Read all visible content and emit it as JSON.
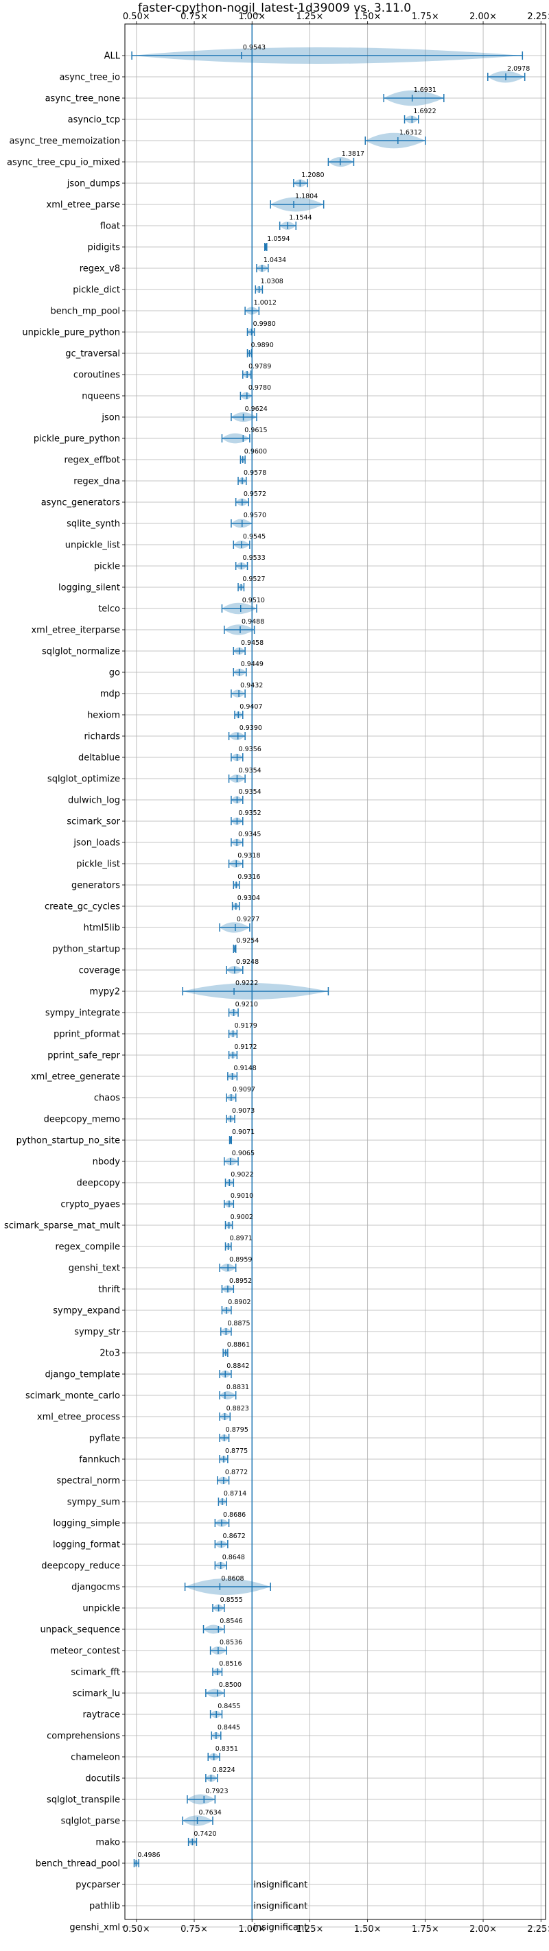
{
  "chart_data": {
    "type": "violin",
    "title": "faster-cpython-nogil_latest-1d39009 vs. 3.11.0",
    "xlabel": "",
    "ylabel": "",
    "xlim": [
      0.45,
      2.27
    ],
    "x_ticks": [
      "0.50×",
      "0.75×",
      "1.00×",
      "1.25×",
      "1.50×",
      "1.75×",
      "2.00×",
      "2.25×"
    ],
    "x_tick_values": [
      0.5,
      0.75,
      1.0,
      1.25,
      1.5,
      1.75,
      2.0,
      2.25
    ],
    "reference_line": 1.0,
    "grid": true,
    "accent_color": "#1f77b4",
    "insignificant_label": "insignificant",
    "benchmarks": [
      {
        "name": "ALL",
        "value": 0.9543,
        "label": "0.9543",
        "min": 0.48,
        "max": 2.17
      },
      {
        "name": "async_tree_io",
        "value": 2.0978,
        "label": "2.0978",
        "min": 2.02,
        "max": 2.18
      },
      {
        "name": "async_tree_none",
        "value": 1.6931,
        "label": "1.6931",
        "min": 1.57,
        "max": 1.83
      },
      {
        "name": "asyncio_tcp",
        "value": 1.6922,
        "label": "1.6922",
        "min": 1.66,
        "max": 1.72
      },
      {
        "name": "async_tree_memoization",
        "value": 1.6312,
        "label": "1.6312",
        "min": 1.49,
        "max": 1.75
      },
      {
        "name": "async_tree_cpu_io_mixed",
        "value": 1.3817,
        "label": "1.3817",
        "min": 1.33,
        "max": 1.44
      },
      {
        "name": "json_dumps",
        "value": 1.208,
        "label": "1.2080",
        "min": 1.18,
        "max": 1.24
      },
      {
        "name": "xml_etree_parse",
        "value": 1.1804,
        "label": "1.1804",
        "min": 1.08,
        "max": 1.31
      },
      {
        "name": "float",
        "value": 1.1544,
        "label": "1.1544",
        "min": 1.12,
        "max": 1.19
      },
      {
        "name": "pidigits",
        "value": 1.0594,
        "label": "1.0594",
        "min": 1.055,
        "max": 1.064
      },
      {
        "name": "regex_v8",
        "value": 1.0434,
        "label": "1.0434",
        "min": 1.02,
        "max": 1.07
      },
      {
        "name": "pickle_dict",
        "value": 1.0308,
        "label": "1.0308",
        "min": 1.015,
        "max": 1.045
      },
      {
        "name": "bench_mp_pool",
        "value": 1.0012,
        "label": "1.0012",
        "min": 0.97,
        "max": 1.03
      },
      {
        "name": "unpickle_pure_python",
        "value": 0.998,
        "label": "0.9980",
        "min": 0.98,
        "max": 1.01
      },
      {
        "name": "gc_traversal",
        "value": 0.989,
        "label": "0.9890",
        "min": 0.98,
        "max": 0.998
      },
      {
        "name": "coroutines",
        "value": 0.9789,
        "label": "0.9789",
        "min": 0.96,
        "max": 0.995
      },
      {
        "name": "nqueens",
        "value": 0.978,
        "label": "0.9780",
        "min": 0.95,
        "max": 1.0
      },
      {
        "name": "json",
        "value": 0.9624,
        "label": "0.9624",
        "min": 0.91,
        "max": 1.02
      },
      {
        "name": "pickle_pure_python",
        "value": 0.9615,
        "label": "0.9615",
        "min": 0.87,
        "max": 0.99
      },
      {
        "name": "regex_effbot",
        "value": 0.96,
        "label": "0.9600",
        "min": 0.95,
        "max": 0.97
      },
      {
        "name": "regex_dna",
        "value": 0.9578,
        "label": "0.9578",
        "min": 0.94,
        "max": 0.975
      },
      {
        "name": "async_generators",
        "value": 0.9572,
        "label": "0.9572",
        "min": 0.93,
        "max": 0.985
      },
      {
        "name": "sqlite_synth",
        "value": 0.957,
        "label": "0.9570",
        "min": 0.91,
        "max": 1.0
      },
      {
        "name": "unpickle_list",
        "value": 0.9545,
        "label": "0.9545",
        "min": 0.92,
        "max": 0.99
      },
      {
        "name": "pickle",
        "value": 0.9533,
        "label": "0.9533",
        "min": 0.93,
        "max": 0.98
      },
      {
        "name": "logging_silent",
        "value": 0.9527,
        "label": "0.9527",
        "min": 0.94,
        "max": 0.965
      },
      {
        "name": "telco",
        "value": 0.951,
        "label": "0.9510",
        "min": 0.87,
        "max": 1.02
      },
      {
        "name": "xml_etree_iterparse",
        "value": 0.9488,
        "label": "0.9488",
        "min": 0.88,
        "max": 1.01
      },
      {
        "name": "sqlglot_normalize",
        "value": 0.9458,
        "label": "0.9458",
        "min": 0.92,
        "max": 0.97
      },
      {
        "name": "go",
        "value": 0.9449,
        "label": "0.9449",
        "min": 0.92,
        "max": 0.975
      },
      {
        "name": "mdp",
        "value": 0.9432,
        "label": "0.9432",
        "min": 0.91,
        "max": 0.97
      },
      {
        "name": "hexiom",
        "value": 0.9407,
        "label": "0.9407",
        "min": 0.925,
        "max": 0.96
      },
      {
        "name": "richards",
        "value": 0.939,
        "label": "0.9390",
        "min": 0.9,
        "max": 0.97
      },
      {
        "name": "deltablue",
        "value": 0.9356,
        "label": "0.9356",
        "min": 0.91,
        "max": 0.96
      },
      {
        "name": "sqlglot_optimize",
        "value": 0.9354,
        "label": "0.9354",
        "min": 0.9,
        "max": 0.97
      },
      {
        "name": "dulwich_log",
        "value": 0.9354,
        "label": "0.9354",
        "min": 0.91,
        "max": 0.96
      },
      {
        "name": "scimark_sor",
        "value": 0.9352,
        "label": "0.9352",
        "min": 0.91,
        "max": 0.96
      },
      {
        "name": "json_loads",
        "value": 0.9345,
        "label": "0.9345",
        "min": 0.91,
        "max": 0.96
      },
      {
        "name": "pickle_list",
        "value": 0.9318,
        "label": "0.9318",
        "min": 0.9,
        "max": 0.96
      },
      {
        "name": "generators",
        "value": 0.9316,
        "label": "0.9316",
        "min": 0.92,
        "max": 0.945
      },
      {
        "name": "create_gc_cycles",
        "value": 0.9304,
        "label": "0.9304",
        "min": 0.915,
        "max": 0.945
      },
      {
        "name": "html5lib",
        "value": 0.9277,
        "label": "0.9277",
        "min": 0.86,
        "max": 0.99
      },
      {
        "name": "python_startup",
        "value": 0.9254,
        "label": "0.9254",
        "min": 0.92,
        "max": 0.93
      },
      {
        "name": "coverage",
        "value": 0.9248,
        "label": "0.9248",
        "min": 0.89,
        "max": 0.96
      },
      {
        "name": "mypy2",
        "value": 0.9222,
        "label": "0.9222",
        "min": 0.7,
        "max": 1.33
      },
      {
        "name": "sympy_integrate",
        "value": 0.921,
        "label": "0.9210",
        "min": 0.9,
        "max": 0.94
      },
      {
        "name": "pprint_pformat",
        "value": 0.9179,
        "label": "0.9179",
        "min": 0.9,
        "max": 0.935
      },
      {
        "name": "pprint_safe_repr",
        "value": 0.9172,
        "label": "0.9172",
        "min": 0.9,
        "max": 0.935
      },
      {
        "name": "xml_etree_generate",
        "value": 0.9148,
        "label": "0.9148",
        "min": 0.895,
        "max": 0.935
      },
      {
        "name": "chaos",
        "value": 0.9097,
        "label": "0.9097",
        "min": 0.89,
        "max": 0.93
      },
      {
        "name": "deepcopy_memo",
        "value": 0.9073,
        "label": "0.9073",
        "min": 0.89,
        "max": 0.925
      },
      {
        "name": "python_startup_no_site",
        "value": 0.9071,
        "label": "0.9071",
        "min": 0.903,
        "max": 0.911
      },
      {
        "name": "nbody",
        "value": 0.9065,
        "label": "0.9065",
        "min": 0.88,
        "max": 0.94
      },
      {
        "name": "deepcopy",
        "value": 0.9022,
        "label": "0.9022",
        "min": 0.885,
        "max": 0.92
      },
      {
        "name": "crypto_pyaes",
        "value": 0.901,
        "label": "0.9010",
        "min": 0.88,
        "max": 0.92
      },
      {
        "name": "scimark_sparse_mat_mult",
        "value": 0.9002,
        "label": "0.9002",
        "min": 0.885,
        "max": 0.915
      },
      {
        "name": "regex_compile",
        "value": 0.8971,
        "label": "0.8971",
        "min": 0.885,
        "max": 0.91
      },
      {
        "name": "genshi_text",
        "value": 0.8959,
        "label": "0.8959",
        "min": 0.86,
        "max": 0.93
      },
      {
        "name": "thrift",
        "value": 0.8952,
        "label": "0.8952",
        "min": 0.87,
        "max": 0.92
      },
      {
        "name": "sympy_expand",
        "value": 0.8902,
        "label": "0.8902",
        "min": 0.87,
        "max": 0.91
      },
      {
        "name": "sympy_str",
        "value": 0.8875,
        "label": "0.8875",
        "min": 0.865,
        "max": 0.91
      },
      {
        "name": "2to3",
        "value": 0.8861,
        "label": "0.8861",
        "min": 0.875,
        "max": 0.895
      },
      {
        "name": "django_template",
        "value": 0.8842,
        "label": "0.8842",
        "min": 0.86,
        "max": 0.91
      },
      {
        "name": "scimark_monte_carlo",
        "value": 0.8831,
        "label": "0.8831",
        "min": 0.86,
        "max": 0.93
      },
      {
        "name": "xml_etree_process",
        "value": 0.8823,
        "label": "0.8823",
        "min": 0.86,
        "max": 0.905
      },
      {
        "name": "pyflate",
        "value": 0.8795,
        "label": "0.8795",
        "min": 0.86,
        "max": 0.9
      },
      {
        "name": "fannkuch",
        "value": 0.8775,
        "label": "0.8775",
        "min": 0.86,
        "max": 0.895
      },
      {
        "name": "spectral_norm",
        "value": 0.8772,
        "label": "0.8772",
        "min": 0.85,
        "max": 0.9
      },
      {
        "name": "sympy_sum",
        "value": 0.8714,
        "label": "0.8714",
        "min": 0.855,
        "max": 0.89
      },
      {
        "name": "logging_simple",
        "value": 0.8686,
        "label": "0.8686",
        "min": 0.84,
        "max": 0.9
      },
      {
        "name": "logging_format",
        "value": 0.8672,
        "label": "0.8672",
        "min": 0.84,
        "max": 0.895
      },
      {
        "name": "deepcopy_reduce",
        "value": 0.8648,
        "label": "0.8648",
        "min": 0.84,
        "max": 0.89
      },
      {
        "name": "djangocms",
        "value": 0.8608,
        "label": "0.8608",
        "min": 0.71,
        "max": 1.08
      },
      {
        "name": "unpickle",
        "value": 0.8555,
        "label": "0.8555",
        "min": 0.83,
        "max": 0.88
      },
      {
        "name": "unpack_sequence",
        "value": 0.8546,
        "label": "0.8546",
        "min": 0.79,
        "max": 0.88
      },
      {
        "name": "meteor_contest",
        "value": 0.8536,
        "label": "0.8536",
        "min": 0.82,
        "max": 0.89
      },
      {
        "name": "scimark_fft",
        "value": 0.8516,
        "label": "0.8516",
        "min": 0.83,
        "max": 0.87
      },
      {
        "name": "scimark_lu",
        "value": 0.85,
        "label": "0.8500",
        "min": 0.8,
        "max": 0.88
      },
      {
        "name": "raytrace",
        "value": 0.8455,
        "label": "0.8455",
        "min": 0.82,
        "max": 0.87
      },
      {
        "name": "comprehensions",
        "value": 0.8445,
        "label": "0.8445",
        "min": 0.825,
        "max": 0.865
      },
      {
        "name": "chameleon",
        "value": 0.8351,
        "label": "0.8351",
        "min": 0.81,
        "max": 0.86
      },
      {
        "name": "docutils",
        "value": 0.8224,
        "label": "0.8224",
        "min": 0.8,
        "max": 0.85
      },
      {
        "name": "sqlglot_transpile",
        "value": 0.7923,
        "label": "0.7923",
        "min": 0.72,
        "max": 0.84
      },
      {
        "name": "sqlglot_parse",
        "value": 0.7634,
        "label": "0.7634",
        "min": 0.7,
        "max": 0.83
      },
      {
        "name": "mako",
        "value": 0.742,
        "label": "0.7420",
        "min": 0.725,
        "max": 0.76
      },
      {
        "name": "bench_thread_pool",
        "value": 0.4986,
        "label": "0.4986",
        "min": 0.49,
        "max": 0.51
      },
      {
        "name": "pycparser",
        "insignificant": true
      },
      {
        "name": "pathlib",
        "insignificant": true
      },
      {
        "name": "genshi_xml",
        "insignificant": true
      }
    ]
  }
}
